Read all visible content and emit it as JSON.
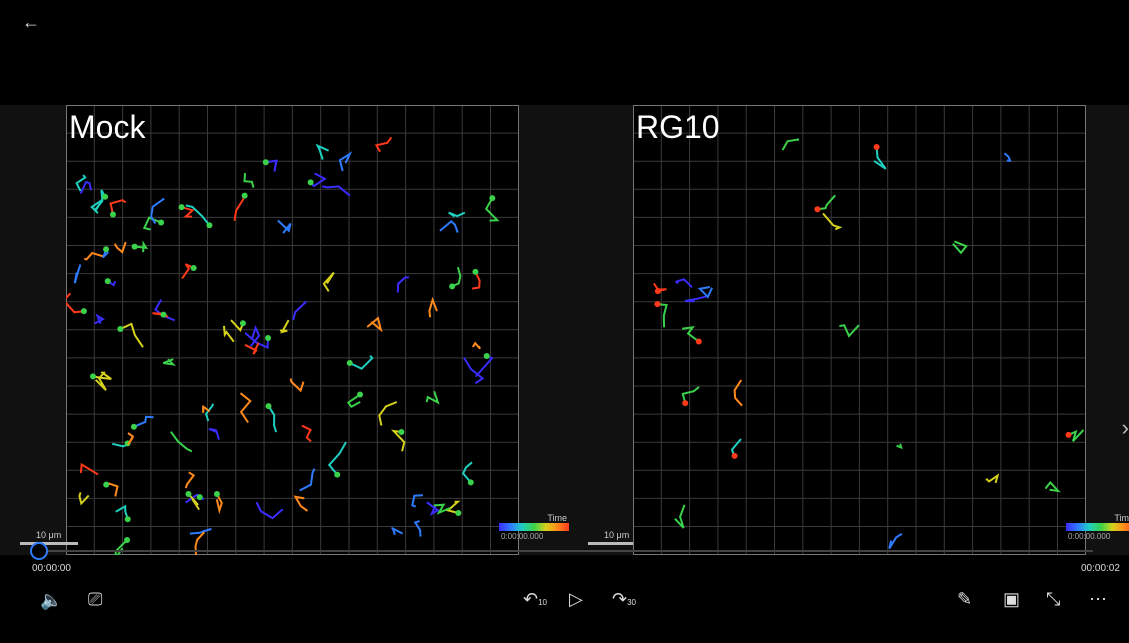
{
  "nav": {
    "back_icon": "back-arrow-icon"
  },
  "panels": [
    {
      "title": "Mock",
      "scale_label": "10 μm",
      "legend_label": "Time",
      "legend_value": "0:00:00.000",
      "track_color": "#3ad24a"
    },
    {
      "title": "RG10",
      "scale_label": "10 μm",
      "legend_label": "Time",
      "legend_value": "0:00:00.000",
      "track_color": "#ff3a1a"
    }
  ],
  "player": {
    "time_current": "00:00:00",
    "time_total": "00:00:02",
    "progress_fraction": 0.0,
    "rewind_label": "10",
    "forward_label": "30",
    "buttons": [
      "volume-icon",
      "captions-icon",
      "rewind-10-icon",
      "play-icon",
      "forward-30-icon",
      "pen-icon",
      "mini-view-icon",
      "exit-fullscreen-icon",
      "more-icon"
    ]
  }
}
